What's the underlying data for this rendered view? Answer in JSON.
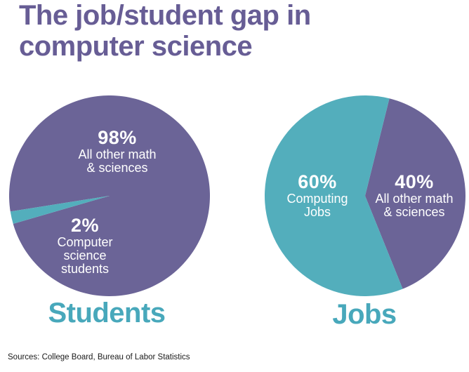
{
  "title": {
    "line1": "The job/student gap in",
    "line2": "computer science"
  },
  "colors": {
    "purple": "#6b6497",
    "teal": "#53aebc",
    "title_purple": "#675d95",
    "caption_teal": "#48a8bb"
  },
  "chart_data": {
    "type": "pie",
    "title": "The job/student gap in computer science",
    "legend_position": "none",
    "pies": [
      {
        "name": "students",
        "caption": "Students",
        "start_angle": 171,
        "slices": [
          {
            "label": "All other math & sciences",
            "pct": 98,
            "color": "#6b6497"
          },
          {
            "label": "Computer science students",
            "pct": 2,
            "color": "#53aebc"
          }
        ]
      },
      {
        "name": "jobs",
        "caption": "Jobs",
        "start_angle": -76,
        "slices": [
          {
            "label": "All other math & sciences",
            "pct": 40,
            "color": "#6b6497"
          },
          {
            "label": "Computing Jobs",
            "pct": 60,
            "color": "#53aebc"
          }
        ]
      }
    ]
  },
  "labels": {
    "students_majority": {
      "value": "98%",
      "line1": "All other math",
      "line2": "& sciences"
    },
    "students_minority": {
      "value": "2%",
      "line1": "Computer",
      "line2": "science",
      "line3": "students"
    },
    "jobs_computing": {
      "value": "60%",
      "line1": "Computing",
      "line2": "Jobs"
    },
    "jobs_other": {
      "value": "40%",
      "line1": "All other math",
      "line2": "& sciences"
    }
  },
  "captions": {
    "students": "Students",
    "jobs": "Jobs"
  },
  "footer": {
    "sources": "Sources: College Board, Bureau of Labor Statistics"
  }
}
